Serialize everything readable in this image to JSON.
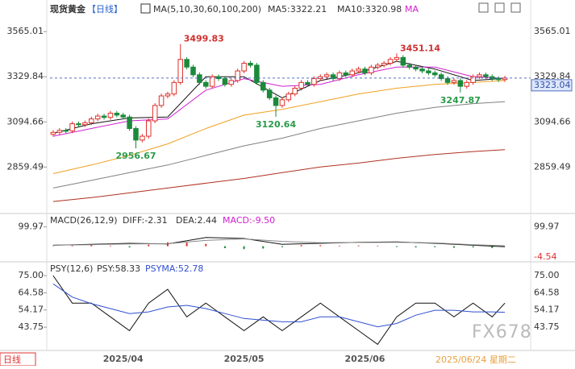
{
  "header": {
    "symbol": "现货黄金",
    "period": "【日线】",
    "ma_label": "MA(5,10,30,60,100,200)",
    "ma5": "MA5:3322.21",
    "ma10": "MA10:3320.98",
    "ma": "MA"
  },
  "chart_data": [
    {
      "type": "candlestick",
      "categories": [
        null,
        null,
        null,
        null,
        null,
        null,
        null,
        null,
        null,
        null,
        null,
        "2025/04",
        null,
        null,
        null,
        null,
        null,
        null,
        null,
        null,
        null,
        null,
        null,
        null,
        null,
        null,
        null,
        null,
        null,
        null,
        "2025/05",
        null,
        null,
        null,
        null,
        null,
        null,
        null,
        null,
        null,
        null,
        null,
        null,
        null,
        null,
        null,
        null,
        null,
        null,
        "2025/06",
        null,
        null,
        null,
        null,
        null,
        null,
        null,
        null,
        null,
        null,
        null,
        null,
        null,
        null,
        null,
        null,
        null,
        null,
        null,
        null,
        null,
        null
      ],
      "open": [
        3030,
        3040,
        3050,
        3048,
        3085,
        3080,
        3090,
        3110,
        3125,
        3118,
        3140,
        3130,
        3120,
        3060,
        3000,
        3020,
        3100,
        3180,
        3230,
        3240,
        3300,
        3420,
        3380,
        3340,
        3300,
        3280,
        3330,
        3320,
        3290,
        3310,
        3360,
        3400,
        3390,
        3300,
        3260,
        3220,
        3180,
        3210,
        3240,
        3270,
        3300,
        3290,
        3320,
        3330,
        3340,
        3320,
        3350,
        3340,
        3360,
        3370,
        3350,
        3380,
        3390,
        3400,
        3420,
        3430,
        3390,
        3380,
        3370,
        3360,
        3350,
        3340,
        3320,
        3300,
        3310,
        3280,
        3300,
        3330,
        3340,
        3330,
        3320,
        3315
      ],
      "high": [
        3052,
        3062,
        3062,
        3097,
        3097,
        3102,
        3122,
        3137,
        3137,
        3152,
        3152,
        3142,
        3132,
        3072,
        3032,
        3112,
        3192,
        3242,
        3252,
        3312,
        3499.83,
        3432,
        3392,
        3352,
        3312,
        3342,
        3342,
        3332,
        3322,
        3372,
        3412,
        3412,
        3402,
        3312,
        3272,
        3232,
        3222,
        3252,
        3282,
        3312,
        3312,
        3332,
        3342,
        3352,
        3352,
        3362,
        3362,
        3372,
        3382,
        3382,
        3392,
        3402,
        3412,
        3432,
        3451.14,
        3442,
        3402,
        3392,
        3382,
        3372,
        3362,
        3352,
        3332,
        3322,
        3322,
        3312,
        3342,
        3352,
        3352,
        3342,
        3332,
        3335
      ],
      "low": [
        3018,
        3028,
        3036,
        3036,
        3068,
        3068,
        3078,
        3098,
        3106,
        3106,
        3118,
        3108,
        3048,
        2956.67,
        2988,
        3008,
        3088,
        3168,
        3218,
        3228,
        3288,
        3368,
        3328,
        3288,
        3268,
        3268,
        3308,
        3278,
        3278,
        3298,
        3348,
        3378,
        3288,
        3248,
        3208,
        3120.64,
        3168,
        3198,
        3228,
        3258,
        3278,
        3278,
        3308,
        3318,
        3308,
        3308,
        3328,
        3328,
        3348,
        3338,
        3338,
        3368,
        3378,
        3388,
        3408,
        3378,
        3368,
        3358,
        3348,
        3338,
        3328,
        3308,
        3288,
        3288,
        3247.87,
        3268,
        3288,
        3318,
        3318,
        3308,
        3303,
        3303
      ],
      "close": [
        3040,
        3050,
        3048,
        3085,
        3080,
        3090,
        3110,
        3125,
        3118,
        3140,
        3130,
        3120,
        3060,
        3000,
        3020,
        3100,
        3180,
        3230,
        3240,
        3300,
        3420,
        3380,
        3340,
        3300,
        3280,
        3330,
        3320,
        3290,
        3310,
        3360,
        3400,
        3390,
        3300,
        3260,
        3220,
        3180,
        3210,
        3240,
        3270,
        3300,
        3290,
        3320,
        3330,
        3340,
        3320,
        3350,
        3340,
        3360,
        3370,
        3350,
        3380,
        3390,
        3400,
        3420,
        3430,
        3390,
        3380,
        3370,
        3360,
        3350,
        3340,
        3320,
        3300,
        3310,
        3280,
        3300,
        3330,
        3340,
        3330,
        3320,
        3315,
        3323
      ],
      "up_color": "#e0302a",
      "down_color": "#1a8a3a",
      "high_labels": [
        20,
        54
      ],
      "low_labels": [
        13,
        35,
        64
      ],
      "last_price": 3323.04,
      "lines": [
        {
          "name": "MA5",
          "color": "#111111",
          "x": [
            0,
            6,
            12,
            18,
            24,
            30,
            36,
            42,
            48,
            54,
            60,
            66,
            71
          ],
          "values": [
            3035,
            3085,
            3115,
            3120,
            3330,
            3330,
            3220,
            3310,
            3350,
            3410,
            3370,
            3310,
            3322.21
          ]
        },
        {
          "name": "MA10",
          "color": "#d020d0",
          "x": [
            0,
            6,
            12,
            18,
            24,
            30,
            36,
            42,
            48,
            54,
            60,
            66,
            71
          ],
          "values": [
            3020,
            3060,
            3100,
            3110,
            3260,
            3320,
            3280,
            3290,
            3340,
            3380,
            3380,
            3330,
            3320.98
          ]
        },
        {
          "color": "#f0a020",
          "x": [
            0,
            6,
            12,
            18,
            24,
            30,
            36,
            42,
            48,
            54,
            60,
            66,
            71
          ],
          "values": [
            2825,
            2870,
            2920,
            2980,
            3060,
            3130,
            3160,
            3200,
            3240,
            3270,
            3290,
            3300,
            3310
          ]
        },
        {
          "color": "#808080",
          "x": [
            0,
            6,
            12,
            18,
            24,
            30,
            36,
            42,
            48,
            54,
            60,
            66,
            71
          ],
          "values": [
            2750,
            2790,
            2830,
            2870,
            2920,
            2970,
            3010,
            3060,
            3100,
            3140,
            3170,
            3190,
            3200
          ]
        },
        {
          "color": "#b03020",
          "x": [
            0,
            6,
            12,
            18,
            24,
            30,
            36,
            42,
            48,
            54,
            60,
            66,
            71
          ],
          "values": [
            2680,
            2700,
            2725,
            2750,
            2775,
            2800,
            2830,
            2860,
            2880,
            2905,
            2925,
            2940,
            2950
          ]
        }
      ],
      "ylim": [
        2630,
        3612
      ],
      "yticks": [
        3565.01,
        3329.84,
        3094.66,
        2859.49
      ]
    },
    {
      "type": "macd",
      "title": "MACD(26,12,9)",
      "diff_label": "DIFF:-2.31",
      "dea_label": "DEA:2.44",
      "macd_label": "MACD:-9.50",
      "ylim": [
        -60,
        140
      ],
      "yticks": [
        99.97
      ],
      "min_label": -4.54,
      "lines": [
        {
          "color": "#111111",
          "x": [
            0,
            6,
            12,
            18,
            24,
            30,
            36,
            42,
            48,
            54,
            60,
            66,
            71
          ],
          "values": [
            5,
            10,
            15,
            12,
            45,
            40,
            10,
            15,
            20,
            22,
            15,
            5,
            -2.31
          ]
        },
        {
          "color": "#888888",
          "x": [
            0,
            6,
            12,
            18,
            24,
            30,
            36,
            42,
            48,
            54,
            60,
            66,
            71
          ],
          "values": [
            6,
            8,
            12,
            13,
            30,
            38,
            25,
            18,
            19,
            20,
            17,
            8,
            2.44
          ]
        }
      ],
      "bars": {
        "x": [
          0,
          3,
          6,
          9,
          12,
          15,
          18,
          21,
          24,
          27,
          30,
          33,
          36,
          39,
          42,
          45,
          48,
          51,
          54,
          57,
          60,
          63,
          66,
          69
        ],
        "values": [
          -2,
          4,
          6,
          3,
          -6,
          8,
          20,
          18,
          12,
          -10,
          -15,
          -12,
          -5,
          6,
          5,
          3,
          4,
          3,
          -4,
          -6,
          -5,
          -8,
          -6,
          -9.5
        ],
        "up_color": "#e0302a",
        "down_color": "#1a8a3a"
      }
    },
    {
      "type": "psy",
      "title": "PSY(12,6)",
      "psy_label": "PSY:58.33",
      "psyma_label": "PSYMA:52.78",
      "ylim": [
        31.1,
        80.9
      ],
      "yticks": [
        {
          "value": 75,
          "label": "75.00"
        },
        64.58,
        54.17,
        43.75
      ],
      "lines": [
        {
          "color": "#111111",
          "x": [
            0,
            3,
            6,
            9,
            12,
            15,
            18,
            21,
            24,
            27,
            30,
            33,
            36,
            39,
            42,
            45,
            48,
            51,
            54,
            57,
            60,
            63,
            66,
            69,
            71
          ],
          "values": [
            75,
            58.33,
            58.33,
            50,
            41.67,
            58.33,
            66.67,
            50,
            58.33,
            50,
            41.67,
            50,
            41.67,
            50,
            58.33,
            50,
            41.67,
            33.33,
            50,
            58.33,
            58.33,
            50,
            58.33,
            50,
            58.33
          ]
        },
        {
          "color": "#3050d0",
          "x": [
            0,
            3,
            6,
            9,
            12,
            15,
            18,
            21,
            24,
            27,
            30,
            33,
            36,
            39,
            42,
            45,
            48,
            51,
            54,
            57,
            60,
            63,
            66,
            69,
            71
          ],
          "values": [
            70,
            62,
            58,
            55,
            52,
            53,
            56,
            57,
            55,
            52,
            49,
            48,
            47,
            47,
            50,
            50,
            47,
            44,
            46,
            51,
            54,
            54,
            53,
            53,
            52.78
          ]
        }
      ]
    }
  ],
  "footer": {
    "period_tab": "日线",
    "date": "2025/06/24 星期二",
    "watermark": "FX678"
  }
}
